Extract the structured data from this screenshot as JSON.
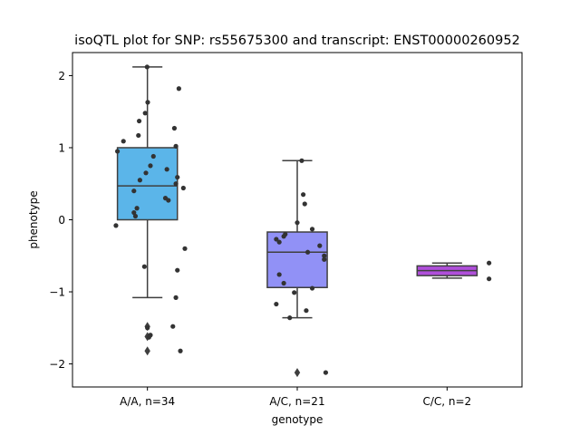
{
  "chart_data": {
    "type": "box",
    "title": "isoQTL plot for SNP: rs55675300 and transcript: ENST00000260952",
    "xlabel": "genotype",
    "ylabel": "phenotype",
    "ylim": [
      -2.32,
      2.32
    ],
    "yticks": [
      -2,
      -1,
      0,
      1,
      2
    ],
    "ytick_labels": [
      "−2",
      "−1",
      "0",
      "1",
      "2"
    ],
    "categories": [
      "A/A, n=34",
      "A/C, n=21",
      "C/C, n=2"
    ],
    "groups": [
      {
        "label": "A/A, n=34",
        "color": "#5bb5e9",
        "box": {
          "q1": 0.0,
          "median": 0.47,
          "q3": 1.0,
          "whisker_low": -1.08,
          "whisker_high": 2.12
        },
        "outliers": [
          -1.48,
          -1.62,
          -1.82
        ],
        "points": [
          {
            "x": -0.002,
            "y": 2.12
          },
          {
            "x": 0.21,
            "y": 1.82
          },
          {
            "x": 0.002,
            "y": 1.63
          },
          {
            "x": -0.015,
            "y": 1.48
          },
          {
            "x": -0.055,
            "y": 1.37
          },
          {
            "x": 0.18,
            "y": 1.27
          },
          {
            "x": -0.06,
            "y": 1.17
          },
          {
            "x": -0.16,
            "y": 1.09
          },
          {
            "x": 0.19,
            "y": 1.02
          },
          {
            "x": -0.2,
            "y": 0.95
          },
          {
            "x": 0.04,
            "y": 0.88
          },
          {
            "x": 0.02,
            "y": 0.75
          },
          {
            "x": 0.13,
            "y": 0.7
          },
          {
            "x": -0.01,
            "y": 0.65
          },
          {
            "x": 0.2,
            "y": 0.59
          },
          {
            "x": -0.05,
            "y": 0.55
          },
          {
            "x": 0.19,
            "y": 0.5
          },
          {
            "x": 0.24,
            "y": 0.44
          },
          {
            "x": -0.09,
            "y": 0.4
          },
          {
            "x": 0.12,
            "y": 0.3
          },
          {
            "x": 0.14,
            "y": 0.27
          },
          {
            "x": -0.07,
            "y": 0.16
          },
          {
            "x": -0.09,
            "y": 0.1
          },
          {
            "x": -0.08,
            "y": 0.05
          },
          {
            "x": -0.21,
            "y": -0.08
          },
          {
            "x": 0.25,
            "y": -0.4
          },
          {
            "x": -0.02,
            "y": -0.65
          },
          {
            "x": 0.2,
            "y": -0.7
          },
          {
            "x": 0.19,
            "y": -1.08
          },
          {
            "x": 0.17,
            "y": -1.48
          },
          {
            "x": 0.02,
            "y": -1.6
          },
          {
            "x": 0.01,
            "y": -1.63
          },
          {
            "x": 0.22,
            "y": -1.82
          },
          {
            "x": 0.0,
            "y": -1.5
          }
        ]
      },
      {
        "label": "A/C, n=21",
        "color": "#9191f6",
        "box": {
          "q1": -0.94,
          "median": -0.45,
          "q3": -0.17,
          "whisker_low": -1.36,
          "whisker_high": 0.82
        },
        "outliers": [
          -2.12
        ],
        "points": [
          {
            "x": 0.03,
            "y": 0.82
          },
          {
            "x": 0.04,
            "y": 0.35
          },
          {
            "x": 0.05,
            "y": 0.22
          },
          {
            "x": 0.0,
            "y": -0.04
          },
          {
            "x": 0.1,
            "y": -0.13
          },
          {
            "x": -0.08,
            "y": -0.2
          },
          {
            "x": -0.09,
            "y": -0.23
          },
          {
            "x": -0.14,
            "y": -0.27
          },
          {
            "x": -0.12,
            "y": -0.31
          },
          {
            "x": 0.15,
            "y": -0.36
          },
          {
            "x": 0.07,
            "y": -0.45
          },
          {
            "x": 0.18,
            "y": -0.5
          },
          {
            "x": 0.18,
            "y": -0.55
          },
          {
            "x": -0.12,
            "y": -0.76
          },
          {
            "x": -0.09,
            "y": -0.88
          },
          {
            "x": 0.1,
            "y": -0.95
          },
          {
            "x": -0.02,
            "y": -1.01
          },
          {
            "x": -0.14,
            "y": -1.17
          },
          {
            "x": 0.06,
            "y": -1.26
          },
          {
            "x": -0.05,
            "y": -1.36
          },
          {
            "x": 0.19,
            "y": -2.12
          }
        ]
      },
      {
        "label": "C/C, n=2",
        "color": "#b04fdb",
        "box": {
          "q1": -0.775,
          "median": -0.705,
          "q3": -0.64,
          "whisker_low": -0.81,
          "whisker_high": -0.6
        },
        "outliers": [],
        "points": [
          {
            "x": 0.28,
            "y": -0.6
          },
          {
            "x": 0.28,
            "y": -0.82
          }
        ]
      }
    ]
  }
}
